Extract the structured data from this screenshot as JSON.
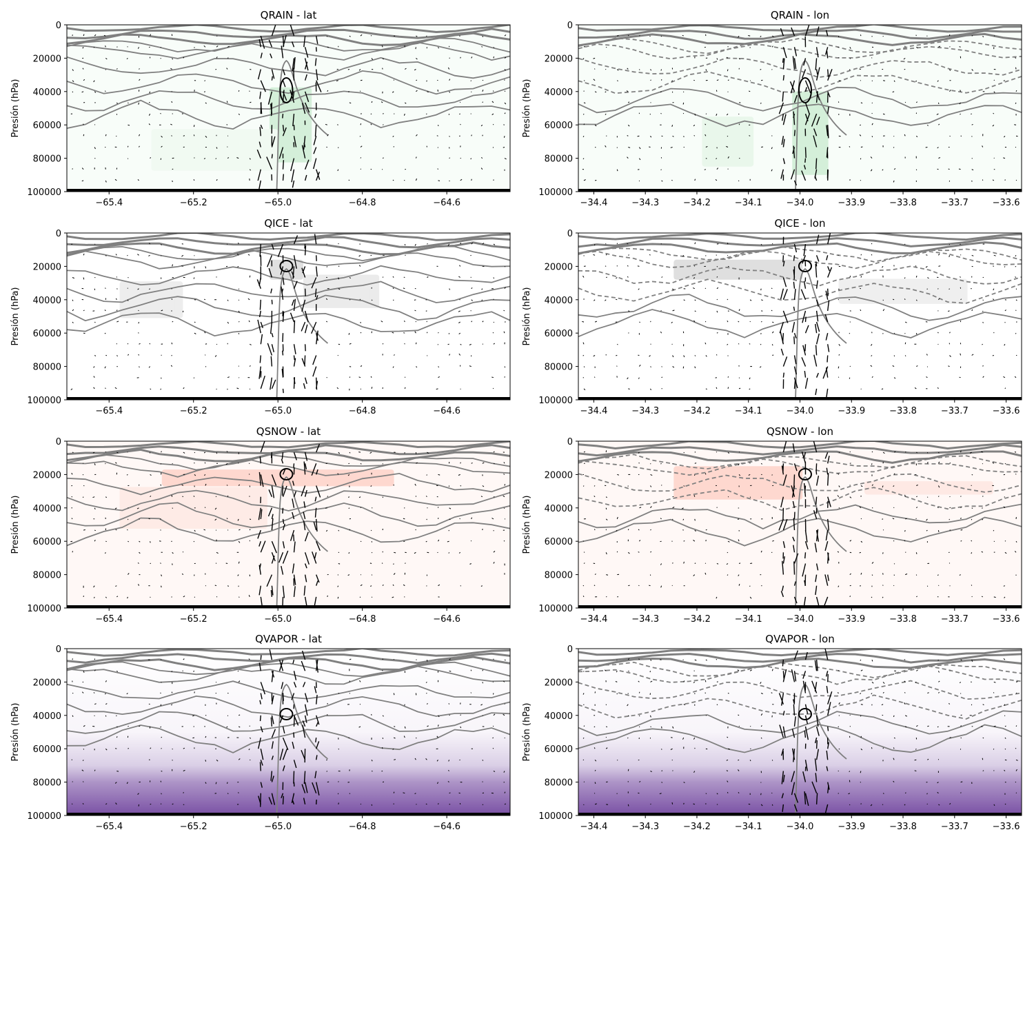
{
  "colors": {
    "contour": "#808080",
    "vectors": "#000000",
    "QRAIN": "#5cc26f",
    "QICE": "#8a8a8a",
    "QSNOW": "#fb6a4a",
    "QVAPOR": "#6a3d9a"
  },
  "chart_data": [
    {
      "type": "heatmap",
      "title": "QRAIN - lat",
      "ylabel": "Presión (hPa)",
      "xlabel": "",
      "xlim": [
        -65.5,
        -64.45
      ],
      "ylim": [
        100000,
        0
      ],
      "xticks": [
        "−65.4",
        "−65.2",
        "−65.0",
        "−64.8",
        "−64.6"
      ],
      "xtick_values": [
        -65.4,
        -65.2,
        -65.0,
        -64.8,
        -64.6
      ],
      "yticks": [
        "0",
        "20000",
        "40000",
        "60000",
        "80000",
        "100000"
      ],
      "ytick_values": [
        0,
        20000,
        40000,
        60000,
        80000,
        100000
      ],
      "fill_colormap": "Greens",
      "fill_cores": [
        [
          -64.97,
          60000,
          0.1,
          45000,
          0.85
        ],
        [
          -65.15,
          75000,
          0.3,
          25000,
          0.15
        ]
      ],
      "overlay": [
        "contours",
        "wind vectors"
      ]
    },
    {
      "type": "heatmap",
      "title": "QRAIN - lon",
      "ylabel": "Presión (hPa)",
      "xlabel": "",
      "xlim": [
        -34.43,
        -33.57
      ],
      "ylim": [
        100000,
        0
      ],
      "xticks": [
        "−34.4",
        "−34.3",
        "−34.2",
        "−34.1",
        "−34.0",
        "−33.9",
        "−33.8",
        "−33.7",
        "−33.6"
      ],
      "xtick_values": [
        -34.4,
        -34.3,
        -34.2,
        -34.1,
        -34.0,
        -33.9,
        -33.8,
        -33.7,
        -33.6
      ],
      "yticks": [
        "0",
        "20000",
        "40000",
        "60000",
        "80000",
        "100000"
      ],
      "ytick_values": [
        0,
        20000,
        40000,
        60000,
        80000,
        100000
      ],
      "fill_colormap": "Greens",
      "fill_cores": [
        [
          -33.98,
          65000,
          0.07,
          50000,
          0.85
        ],
        [
          -34.14,
          70000,
          0.1,
          30000,
          0.35
        ]
      ],
      "overlay": [
        "contours",
        "wind vectors"
      ]
    },
    {
      "type": "heatmap",
      "title": "QICE - lat",
      "ylabel": "Presión (hPa)",
      "xlabel": "",
      "xlim": [
        -65.5,
        -64.45
      ],
      "ylim": [
        100000,
        0
      ],
      "xticks": [
        "−65.4",
        "−65.2",
        "−65.0",
        "−64.8",
        "−64.6"
      ],
      "xtick_values": [
        -65.4,
        -65.2,
        -65.0,
        -64.8,
        -64.6
      ],
      "yticks": [
        "0",
        "20000",
        "40000",
        "60000",
        "80000",
        "100000"
      ],
      "ytick_values": [
        0,
        20000,
        40000,
        60000,
        80000,
        100000
      ],
      "fill_colormap": "Greys",
      "fill_cores": [
        [
          -64.98,
          22000,
          0.08,
          12000,
          0.9
        ],
        [
          -64.85,
          35000,
          0.18,
          20000,
          0.5
        ],
        [
          -65.3,
          40000,
          0.15,
          22000,
          0.4
        ]
      ],
      "overlay": [
        "contours",
        "wind vectors"
      ]
    },
    {
      "type": "heatmap",
      "title": "QICE - lon",
      "ylabel": "Presión (hPa)",
      "xlabel": "",
      "xlim": [
        -34.43,
        -33.57
      ],
      "ylim": [
        100000,
        0
      ],
      "xticks": [
        "−34.4",
        "−34.3",
        "−34.2",
        "−34.1",
        "−34.0",
        "−33.9",
        "−33.8",
        "−33.7",
        "−33.6"
      ],
      "xtick_values": [
        -34.4,
        -34.3,
        -34.2,
        -34.1,
        -34.0,
        -33.9,
        -33.8,
        -33.7,
        -33.6
      ],
      "yticks": [
        "0",
        "20000",
        "40000",
        "60000",
        "80000",
        "100000"
      ],
      "ytick_values": [
        0,
        20000,
        40000,
        60000,
        80000,
        100000
      ],
      "fill_colormap": "Greys",
      "fill_cores": [
        [
          -34.12,
          22000,
          0.25,
          12000,
          0.9
        ],
        [
          -33.8,
          35000,
          0.25,
          15000,
          0.35
        ]
      ],
      "overlay": [
        "contours",
        "wind vectors"
      ]
    },
    {
      "type": "heatmap",
      "title": "QSNOW - lat",
      "ylabel": "Presión (hPa)",
      "xlabel": "",
      "xlim": [
        -65.5,
        -64.45
      ],
      "ylim": [
        100000,
        0
      ],
      "xticks": [
        "−65.4",
        "−65.2",
        "−65.0",
        "−64.8",
        "−64.6"
      ],
      "xtick_values": [
        -65.4,
        -65.2,
        -65.0,
        -64.8,
        -64.6
      ],
      "yticks": [
        "0",
        "20000",
        "40000",
        "60000",
        "80000",
        "100000"
      ],
      "ytick_values": [
        0,
        20000,
        40000,
        60000,
        80000,
        100000
      ],
      "fill_colormap": "Reds",
      "fill_cores": [
        [
          -65.0,
          22000,
          0.55,
          10000,
          0.85
        ],
        [
          -65.2,
          40000,
          0.35,
          25000,
          0.35
        ]
      ],
      "overlay": [
        "contours",
        "wind vectors"
      ]
    },
    {
      "type": "heatmap",
      "title": "QSNOW - lon",
      "ylabel": "Presión (hPa)",
      "xlabel": "",
      "xlim": [
        -34.43,
        -33.57
      ],
      "ylim": [
        100000,
        0
      ],
      "xticks": [
        "−34.4",
        "−34.3",
        "−34.2",
        "−34.1",
        "−34.0",
        "−33.9",
        "−33.8",
        "−33.7",
        "−33.6"
      ],
      "xtick_values": [
        -34.4,
        -34.3,
        -34.2,
        -34.1,
        -34.0,
        -33.9,
        -33.8,
        -33.7,
        -33.6
      ],
      "yticks": [
        "0",
        "20000",
        "40000",
        "60000",
        "80000",
        "100000"
      ],
      "ytick_values": [
        0,
        20000,
        40000,
        60000,
        80000,
        100000
      ],
      "fill_colormap": "Reds",
      "fill_cores": [
        [
          -34.12,
          25000,
          0.25,
          20000,
          0.85
        ],
        [
          -33.75,
          28000,
          0.25,
          8000,
          0.4
        ]
      ],
      "overlay": [
        "contours",
        "wind vectors"
      ]
    },
    {
      "type": "heatmap",
      "title": "QVAPOR - lat",
      "ylabel": "Presión (hPa)",
      "xlabel": "",
      "xlim": [
        -65.5,
        -64.45
      ],
      "ylim": [
        100000,
        0
      ],
      "xticks": [
        "−65.4",
        "−65.2",
        "−65.0",
        "−64.8",
        "−64.6"
      ],
      "xtick_values": [
        -65.4,
        -65.2,
        -65.0,
        -64.8,
        -64.6
      ],
      "yticks": [
        "0",
        "20000",
        "40000",
        "60000",
        "80000",
        "100000"
      ],
      "ytick_values": [
        0,
        20000,
        40000,
        60000,
        80000,
        100000
      ],
      "fill_colormap": "Purples",
      "fill_gradient": [
        [
          0,
          0.0
        ],
        [
          50000,
          0.05
        ],
        [
          70000,
          0.25
        ],
        [
          80000,
          0.55
        ],
        [
          100000,
          0.9
        ]
      ],
      "overlay": [
        "contours",
        "wind vectors"
      ]
    },
    {
      "type": "heatmap",
      "title": "QVAPOR - lon",
      "ylabel": "Presión (hPa)",
      "xlabel": "",
      "xlim": [
        -34.43,
        -33.57
      ],
      "ylim": [
        100000,
        0
      ],
      "xticks": [
        "−34.4",
        "−34.3",
        "−34.2",
        "−34.1",
        "−34.0",
        "−33.9",
        "−33.8",
        "−33.7",
        "−33.6"
      ],
      "xtick_values": [
        -34.4,
        -34.3,
        -34.2,
        -34.1,
        -34.0,
        -33.9,
        -33.8,
        -33.7,
        -33.6
      ],
      "yticks": [
        "0",
        "20000",
        "40000",
        "60000",
        "80000",
        "100000"
      ],
      "ytick_values": [
        0,
        20000,
        40000,
        60000,
        80000,
        100000
      ],
      "fill_colormap": "Purples",
      "fill_gradient": [
        [
          0,
          0.0
        ],
        [
          50000,
          0.05
        ],
        [
          70000,
          0.25
        ],
        [
          80000,
          0.55
        ],
        [
          100000,
          0.9
        ]
      ],
      "overlay": [
        "contours",
        "wind vectors"
      ]
    }
  ]
}
